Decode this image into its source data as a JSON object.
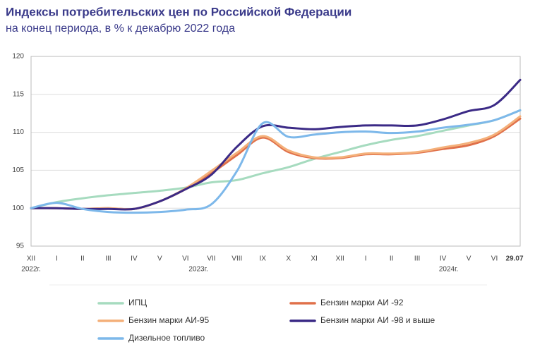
{
  "chart_data": {
    "type": "line",
    "title": "Индексы потребительских цен по Российской Федерации",
    "subtitle": "на конец периода, в % к декабрю 2022 года",
    "categories": [
      "XII",
      "I",
      "II",
      "III",
      "IV",
      "V",
      "VI",
      "VII",
      "VIII",
      "IX",
      "X",
      "XI",
      "XII",
      "I",
      "II",
      "III",
      "IV",
      "V",
      "VI",
      "29.07"
    ],
    "year_labels": [
      "2022г.",
      "2023г.",
      "2024г."
    ],
    "ylim": [
      95,
      120
    ],
    "yticks": [
      95,
      100,
      105,
      110,
      115,
      120
    ],
    "grid": true,
    "series": [
      {
        "name": "ИПЦ",
        "color": "#a6dbbf",
        "values": [
          100,
          100.8,
          101.3,
          101.7,
          102.0,
          102.3,
          102.7,
          103.4,
          103.7,
          104.6,
          105.4,
          106.5,
          107.4,
          108.3,
          109.0,
          109.5,
          110.2,
          110.9,
          111.6,
          112.9
        ]
      },
      {
        "name": "Бензин марки АИ -92",
        "color": "#e0704a",
        "values": [
          100,
          100,
          99.9,
          100,
          99.9,
          100.9,
          102.5,
          104.6,
          107.0,
          109.3,
          107.4,
          106.6,
          106.6,
          107.1,
          107.1,
          107.3,
          107.8,
          108.3,
          109.5,
          111.8
        ]
      },
      {
        "name": "Бензин марки АИ-95",
        "color": "#f4b07a",
        "values": [
          100,
          100,
          99.9,
          100,
          99.9,
          100.9,
          102.6,
          104.9,
          107.3,
          109.5,
          107.6,
          106.7,
          106.7,
          107.2,
          107.2,
          107.4,
          108.0,
          108.6,
          109.7,
          112.1
        ]
      },
      {
        "name": "Бензин марки АИ -98 и выше",
        "color": "#3b2a86",
        "values": [
          100,
          100,
          99.9,
          99.9,
          99.9,
          100.9,
          102.5,
          104.4,
          108.1,
          110.8,
          110.6,
          110.4,
          110.7,
          110.9,
          110.9,
          110.9,
          111.7,
          112.8,
          113.6,
          116.9
        ]
      },
      {
        "name": "Дизельное топливо",
        "color": "#7db8ea",
        "values": [
          100,
          100.7,
          99.9,
          99.5,
          99.4,
          99.5,
          99.8,
          100.5,
          104.9,
          111.2,
          109.4,
          109.7,
          110.0,
          110.1,
          109.9,
          110.1,
          110.6,
          111.0,
          111.6,
          112.9
        ]
      }
    ]
  }
}
